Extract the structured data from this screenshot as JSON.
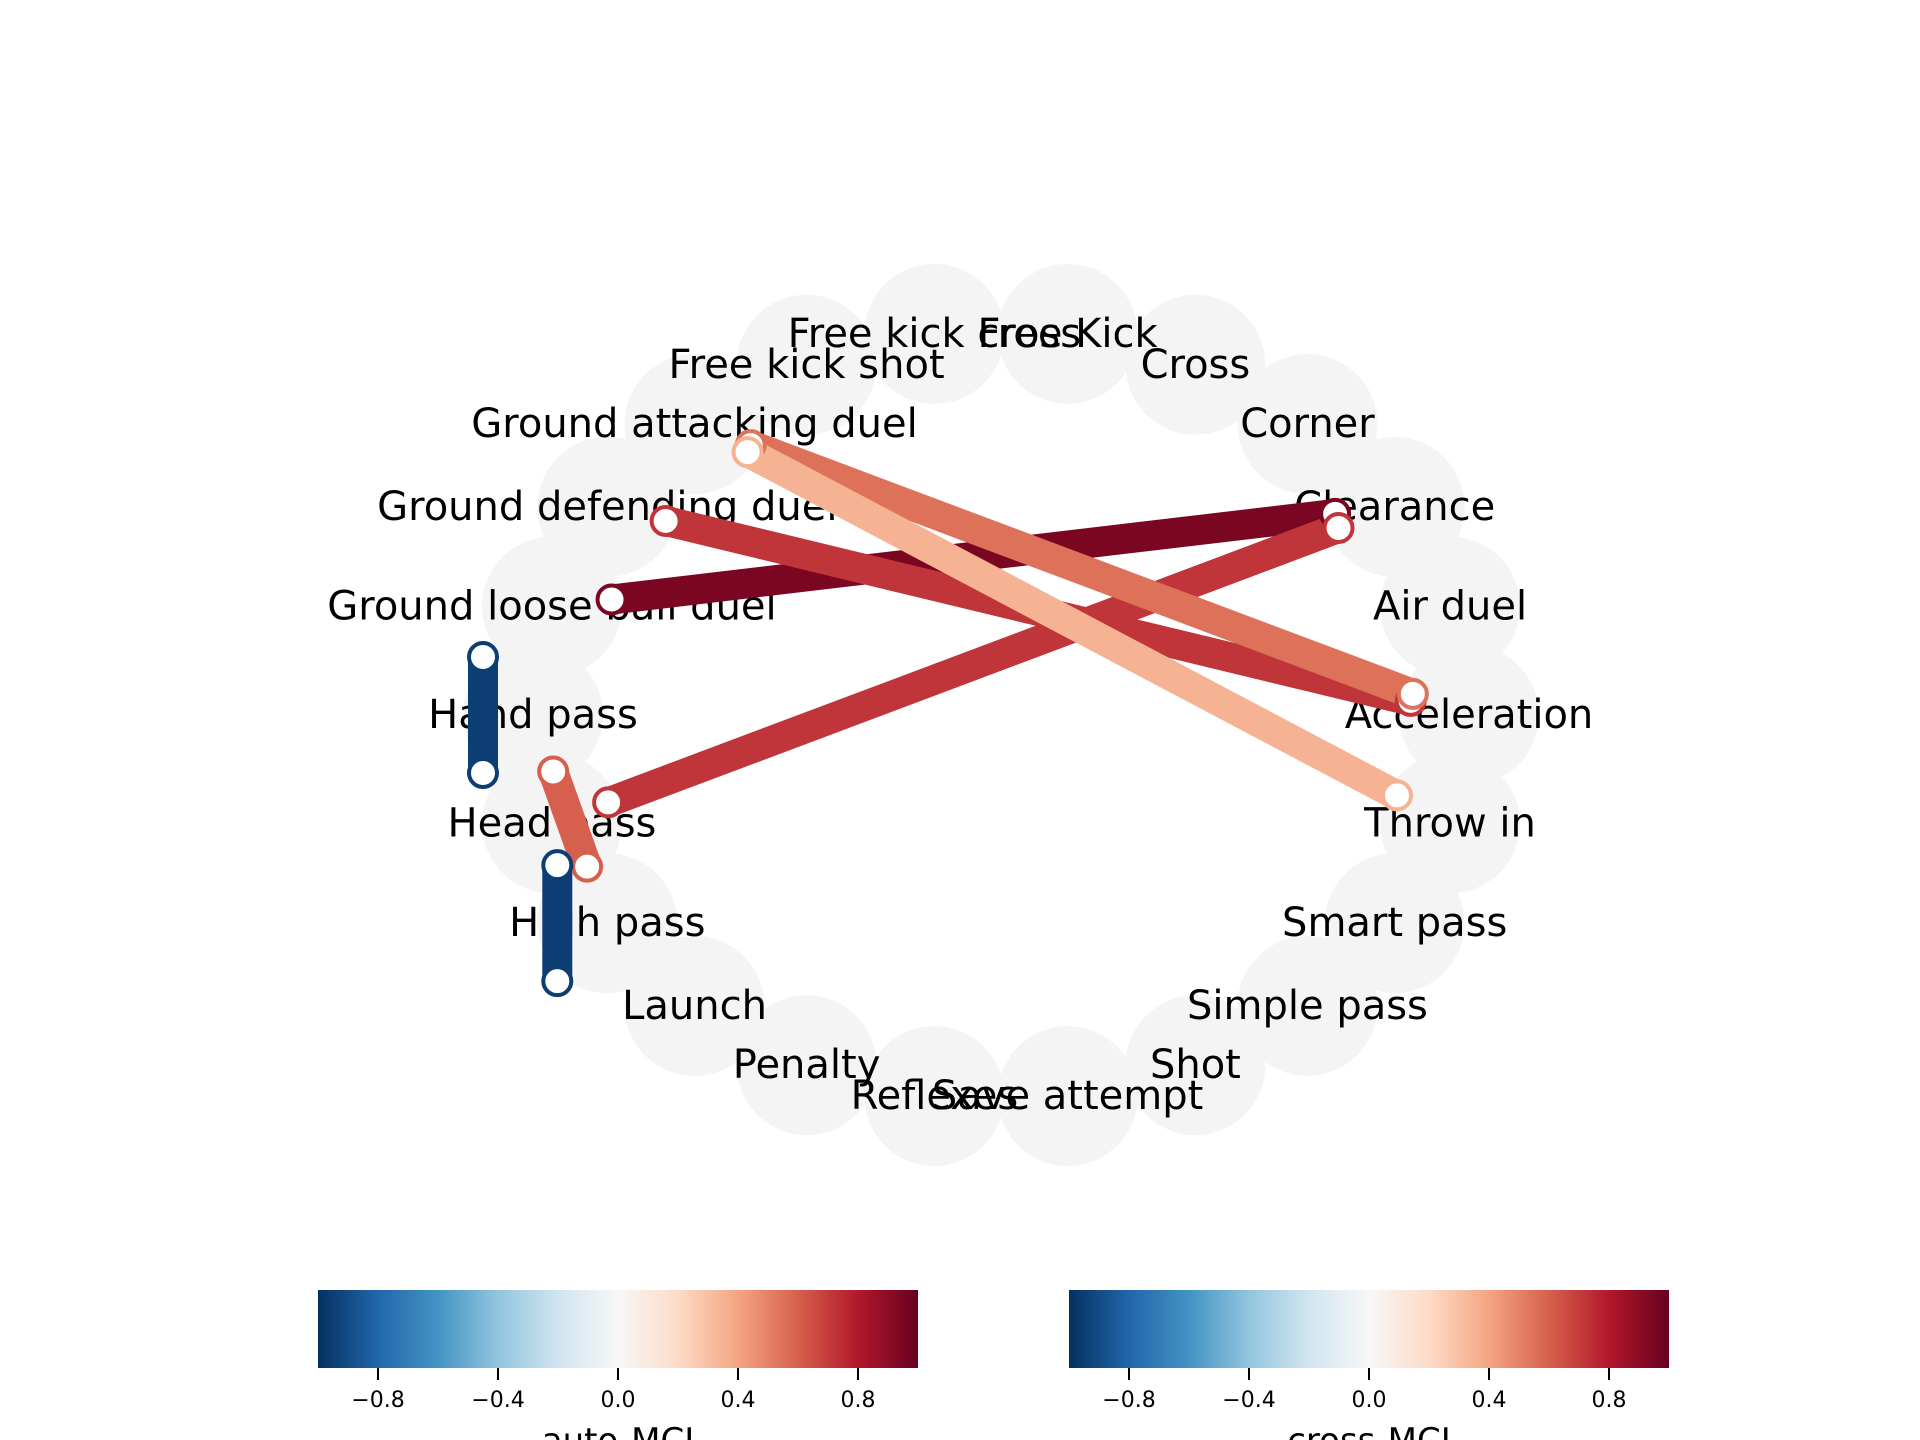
{
  "chart_data": {
    "type": "network",
    "nodes": [
      {
        "id": "Free Kick",
        "label": "Free Kick"
      },
      {
        "id": "Cross",
        "label": "Cross"
      },
      {
        "id": "Corner",
        "label": "Corner"
      },
      {
        "id": "Clearance",
        "label": "Clearance"
      },
      {
        "id": "Air duel",
        "label": "Air duel"
      },
      {
        "id": "Acceleration",
        "label": "Acceleration"
      },
      {
        "id": "Throw in",
        "label": "Throw in"
      },
      {
        "id": "Smart pass",
        "label": "Smart pass"
      },
      {
        "id": "Simple pass",
        "label": "Simple pass"
      },
      {
        "id": "Shot",
        "label": "Shot"
      },
      {
        "id": "Save attempt",
        "label": "Save attempt"
      },
      {
        "id": "Reflexes",
        "label": "Reflexes"
      },
      {
        "id": "Penalty",
        "label": "Penalty"
      },
      {
        "id": "Launch",
        "label": "Launch"
      },
      {
        "id": "High pass",
        "label": "High pass"
      },
      {
        "id": "Head pass",
        "label": "Head pass"
      },
      {
        "id": "Hand pass",
        "label": "Hand pass"
      },
      {
        "id": "Ground loose ball duel",
        "label": "Ground loose ball duel"
      },
      {
        "id": "Ground defending duel",
        "label": "Ground defending duel"
      },
      {
        "id": "Ground attacking duel",
        "label": "Ground attacking duel"
      },
      {
        "id": "Free kick shot",
        "label": "Free kick shot"
      },
      {
        "id": "Free kick cross",
        "label": "Free kick cross"
      }
    ],
    "edges": [
      {
        "source": "Ground loose ball duel",
        "target": "Clearance",
        "measure": "cross-MCI",
        "value": 0.95
      },
      {
        "source": "Head pass",
        "target": "Clearance",
        "measure": "cross-MCI",
        "value": 0.72
      },
      {
        "source": "Ground defending duel",
        "target": "Acceleration",
        "measure": "cross-MCI",
        "value": 0.72
      },
      {
        "source": "Ground attacking duel",
        "target": "Acceleration",
        "measure": "cross-MCI",
        "value": 0.55
      },
      {
        "source": "Ground attacking duel",
        "target": "Throw in",
        "measure": "cross-MCI",
        "value": 0.35
      },
      {
        "source": "Hand pass",
        "target": "High pass",
        "measure": "cross-MCI",
        "value": 0.6
      },
      {
        "source": "Hand pass",
        "target": "Hand pass",
        "measure": "auto-MCI",
        "value": -0.95
      },
      {
        "source": "High pass",
        "target": "High pass",
        "measure": "auto-MCI",
        "value": -0.95
      }
    ],
    "colorbars": [
      {
        "label": "auto-MCI",
        "range": [
          -1,
          1
        ],
        "ticks": [
          "−0.8",
          "−0.4",
          "0.0",
          "0.4",
          "0.8"
        ],
        "colormap": "RdBu_r"
      },
      {
        "label": "cross-MCI",
        "range": [
          -1,
          1
        ],
        "ticks": [
          "−0.8",
          "−0.4",
          "0.0",
          "0.4",
          "0.8"
        ],
        "colormap": "RdBu_r"
      }
    ],
    "colormap_stops": [
      "#053061",
      "#2166ac",
      "#4393c3",
      "#92c5de",
      "#d1e5f0",
      "#f7f7f7",
      "#fddbc7",
      "#f4a582",
      "#d6604d",
      "#b2182b",
      "#67001f"
    ],
    "node_color": "#f4f4f4"
  }
}
